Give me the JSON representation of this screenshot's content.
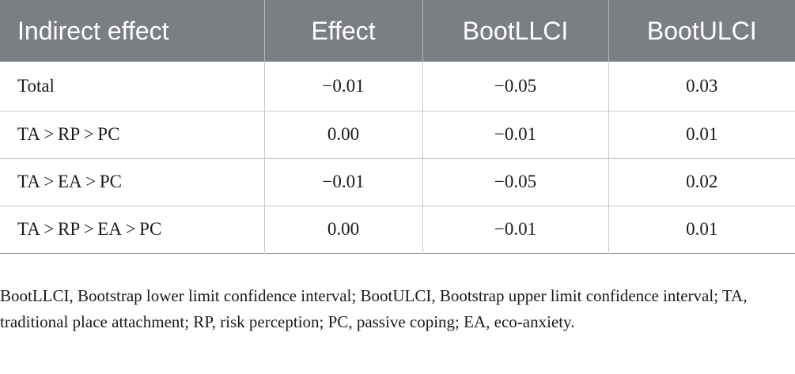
{
  "table": {
    "headers": [
      "Indirect effect",
      "Effect",
      "BootLLCI",
      "BootULCI"
    ],
    "rows": [
      [
        "Total",
        "−0.01",
        "−0.05",
        "0.03"
      ],
      [
        "TA > RP > PC",
        "0.00",
        "−0.01",
        "0.01"
      ],
      [
        "TA > EA > PC",
        "−0.01",
        "−0.05",
        "0.02"
      ],
      [
        "TA > RP > EA > PC",
        "0.00",
        "−0.01",
        "0.01"
      ]
    ]
  },
  "footnote": "BootLLCI, Bootstrap lower limit confidence interval; BootULCI, Bootstrap upper limit confidence interval; TA, traditional place attachment; RP, risk perception; PC, passive coping; EA, eco-anxiety."
}
